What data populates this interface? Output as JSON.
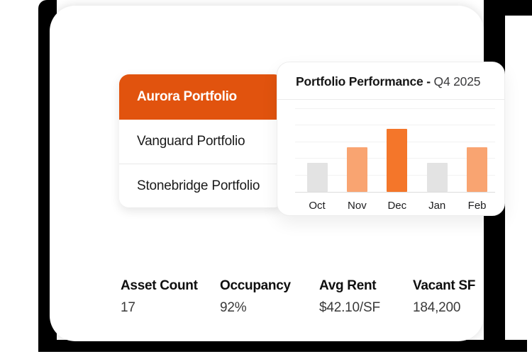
{
  "colors": {
    "accent_orange": "#E1530E",
    "bar_strong_orange": "#F4762A",
    "bar_light_orange": "#F9A471",
    "bar_gray": "#E3E3E3",
    "shadow_black": "#000000"
  },
  "portfolio_list": {
    "items": [
      {
        "label": "Aurora Portfolio",
        "active": true
      },
      {
        "label": "Vanguard Portfolio",
        "active": false
      },
      {
        "label": "Stonebridge Portfolio",
        "active": false
      }
    ]
  },
  "chart_card": {
    "title_bold": "Portfolio Performance -",
    "title_regular": "Q4 2025"
  },
  "chart_data": {
    "type": "bar",
    "title": "Portfolio Performance - Q4 2025",
    "categories": [
      "Oct",
      "Nov",
      "Dec",
      "Jan",
      "Feb"
    ],
    "values": [
      46,
      71,
      100,
      46,
      71
    ],
    "value_note": "relative scale, no y-axis tick labels shown; Dec tallest = 100",
    "bar_colors": [
      "#E3E3E3",
      "#F9A471",
      "#F4762A",
      "#E3E3E3",
      "#F9A471"
    ],
    "xlabel": "",
    "ylabel": "",
    "ylim": [
      0,
      132
    ],
    "grid": true,
    "legend": false,
    "gridline_count": 5
  },
  "stats": [
    {
      "label": "Asset Count",
      "value": "17"
    },
    {
      "label": "Occupancy",
      "value": "92%"
    },
    {
      "label": "Avg Rent",
      "value": "$42.10/SF"
    },
    {
      "label": "Vacant SF",
      "value": "184,200"
    }
  ]
}
